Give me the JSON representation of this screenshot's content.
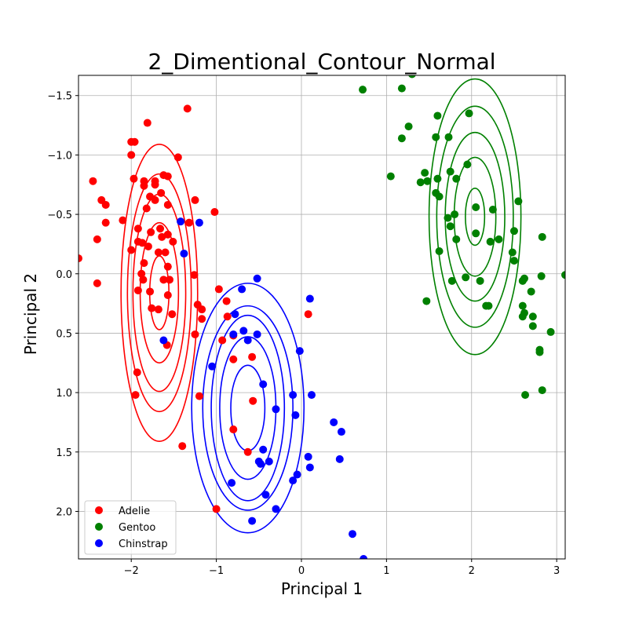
{
  "chart_data": {
    "type": "scatter",
    "title": "2_Dimentional_Contour_Normal",
    "xlabel": "Principal 1",
    "ylabel": "Principal 2",
    "xlim": [
      -2.62,
      3.1
    ],
    "ylim": [
      2.4,
      -1.67
    ],
    "y_inverted": true,
    "grid": true,
    "legend_position": "lower left",
    "x_ticks": [
      -2,
      -1,
      0,
      1,
      2,
      3
    ],
    "x_tick_labels": [
      "−2",
      "−1",
      "0",
      "1",
      "2",
      "3"
    ],
    "y_ticks": [
      -1.5,
      -1.0,
      -0.5,
      0.0,
      0.5,
      1.0,
      1.5,
      2.0
    ],
    "y_tick_labels": [
      "−1.5",
      "−1.0",
      "−0.5",
      "0.0",
      "0.5",
      "1.0",
      "1.5",
      "2.0"
    ],
    "series": [
      {
        "name": "Adelie",
        "color": "#ff0000",
        "points": [
          [
            -1.81,
            -1.27
          ],
          [
            -2.0,
            -1.11
          ],
          [
            -1.96,
            -1.11
          ],
          [
            -2.0,
            -1.0
          ],
          [
            -1.45,
            -0.98
          ],
          [
            -2.45,
            -0.78
          ],
          [
            -1.97,
            -0.8
          ],
          [
            -1.85,
            -0.78
          ],
          [
            -1.85,
            -0.74
          ],
          [
            -1.62,
            -0.83
          ],
          [
            -1.57,
            -0.82
          ],
          [
            -1.72,
            -0.78
          ],
          [
            -1.72,
            -0.75
          ],
          [
            -1.65,
            -0.68
          ],
          [
            -1.78,
            -0.65
          ],
          [
            -1.72,
            -0.62
          ],
          [
            -1.82,
            -0.55
          ],
          [
            -1.57,
            -0.58
          ],
          [
            -1.25,
            -0.62
          ],
          [
            -1.02,
            -0.52
          ],
          [
            -2.35,
            -0.62
          ],
          [
            -2.3,
            -0.58
          ],
          [
            -2.1,
            -0.45
          ],
          [
            -2.3,
            -0.43
          ],
          [
            -1.92,
            -0.38
          ],
          [
            -1.77,
            -0.35
          ],
          [
            -1.66,
            -0.38
          ],
          [
            -1.57,
            -0.33
          ],
          [
            -1.64,
            -0.31
          ],
          [
            -1.51,
            -0.27
          ],
          [
            -2.4,
            -0.29
          ],
          [
            -1.92,
            -0.27
          ],
          [
            -1.87,
            -0.26
          ],
          [
            -1.8,
            -0.23
          ],
          [
            -1.32,
            -0.43
          ],
          [
            -1.85,
            -0.09
          ],
          [
            -1.68,
            -0.18
          ],
          [
            -2.0,
            -0.2
          ],
          [
            -1.57,
            -0.06
          ],
          [
            -2.62,
            -0.13
          ],
          [
            -1.88,
            0.0
          ],
          [
            -1.86,
            0.05
          ],
          [
            -1.62,
            0.05
          ],
          [
            -1.55,
            0.05
          ],
          [
            -1.26,
            0.01
          ],
          [
            -2.4,
            0.08
          ],
          [
            -1.92,
            0.14
          ],
          [
            -1.78,
            0.15
          ],
          [
            -1.57,
            0.18
          ],
          [
            -1.22,
            0.26
          ],
          [
            -1.76,
            0.29
          ],
          [
            -1.68,
            0.3
          ],
          [
            -1.52,
            0.34
          ],
          [
            -1.17,
            0.3
          ],
          [
            -1.17,
            0.38
          ],
          [
            -0.97,
            0.13
          ],
          [
            -0.88,
            0.23
          ],
          [
            -0.87,
            0.36
          ],
          [
            -1.25,
            0.51
          ],
          [
            -1.58,
            0.6
          ],
          [
            -0.93,
            0.56
          ],
          [
            -0.8,
            0.52
          ],
          [
            -0.8,
            0.72
          ],
          [
            -0.58,
            0.7
          ],
          [
            -1.2,
            1.03
          ],
          [
            -1.93,
            0.83
          ],
          [
            -1.95,
            1.02
          ],
          [
            -0.57,
            1.07
          ],
          [
            -0.8,
            1.31
          ],
          [
            -0.63,
            1.5
          ],
          [
            -1.4,
            1.45
          ],
          [
            -1.0,
            1.98
          ],
          [
            0.08,
            0.34
          ],
          [
            -1.34,
            -1.39
          ],
          [
            -1.6,
            -0.18
          ]
        ]
      },
      {
        "name": "Gentoo",
        "color": "#008000",
        "points": [
          [
            0.72,
            -1.55
          ],
          [
            1.3,
            -1.68
          ],
          [
            1.18,
            -1.56
          ],
          [
            1.97,
            -1.35
          ],
          [
            1.6,
            -1.33
          ],
          [
            1.26,
            -1.24
          ],
          [
            1.18,
            -1.14
          ],
          [
            1.58,
            -1.15
          ],
          [
            1.73,
            -1.15
          ],
          [
            1.05,
            -0.82
          ],
          [
            1.45,
            -0.85
          ],
          [
            1.48,
            -0.78
          ],
          [
            1.4,
            -0.77
          ],
          [
            1.6,
            -0.8
          ],
          [
            1.75,
            -0.86
          ],
          [
            1.95,
            -0.92
          ],
          [
            1.82,
            -0.8
          ],
          [
            1.58,
            -0.68
          ],
          [
            1.62,
            -0.65
          ],
          [
            2.05,
            -0.56
          ],
          [
            2.25,
            -0.54
          ],
          [
            2.55,
            -0.61
          ],
          [
            1.72,
            -0.47
          ],
          [
            1.8,
            -0.5
          ],
          [
            1.75,
            -0.4
          ],
          [
            2.05,
            -0.34
          ],
          [
            1.82,
            -0.29
          ],
          [
            2.22,
            -0.27
          ],
          [
            2.32,
            -0.29
          ],
          [
            2.5,
            -0.36
          ],
          [
            2.48,
            -0.18
          ],
          [
            2.5,
            -0.11
          ],
          [
            2.83,
            -0.31
          ],
          [
            1.62,
            -0.19
          ],
          [
            2.1,
            0.06
          ],
          [
            1.93,
            0.03
          ],
          [
            1.77,
            0.06
          ],
          [
            2.6,
            0.06
          ],
          [
            2.62,
            0.04
          ],
          [
            2.82,
            0.02
          ],
          [
            3.1,
            0.01
          ],
          [
            2.7,
            0.15
          ],
          [
            2.6,
            0.27
          ],
          [
            2.62,
            0.33
          ],
          [
            2.6,
            0.36
          ],
          [
            2.72,
            0.36
          ],
          [
            2.72,
            0.44
          ],
          [
            2.93,
            0.49
          ],
          [
            2.17,
            0.27
          ],
          [
            2.2,
            0.27
          ],
          [
            1.47,
            0.23
          ],
          [
            2.8,
            0.64
          ],
          [
            2.8,
            0.66
          ],
          [
            2.83,
            0.98
          ],
          [
            2.63,
            1.02
          ]
        ]
      },
      {
        "name": "Chinstrap",
        "color": "#0000ff",
        "points": [
          [
            -1.42,
            -0.44
          ],
          [
            -1.2,
            -0.43
          ],
          [
            -1.38,
            -0.17
          ],
          [
            -0.52,
            0.04
          ],
          [
            -0.7,
            0.13
          ],
          [
            0.1,
            0.21
          ],
          [
            -0.78,
            0.34
          ],
          [
            -0.68,
            0.48
          ],
          [
            -0.63,
            0.56
          ],
          [
            -0.52,
            0.51
          ],
          [
            -0.8,
            0.51
          ],
          [
            -1.62,
            0.56
          ],
          [
            -1.05,
            0.78
          ],
          [
            -0.02,
            0.65
          ],
          [
            -0.45,
            0.93
          ],
          [
            -0.1,
            1.02
          ],
          [
            0.12,
            1.02
          ],
          [
            -0.3,
            1.14
          ],
          [
            -0.07,
            1.19
          ],
          [
            0.38,
            1.25
          ],
          [
            0.47,
            1.33
          ],
          [
            -0.45,
            1.48
          ],
          [
            -0.5,
            1.58
          ],
          [
            -0.48,
            1.6
          ],
          [
            -0.38,
            1.58
          ],
          [
            0.08,
            1.54
          ],
          [
            0.1,
            1.63
          ],
          [
            0.45,
            1.56
          ],
          [
            -0.05,
            1.69
          ],
          [
            -0.1,
            1.74
          ],
          [
            -0.82,
            1.76
          ],
          [
            -0.42,
            1.86
          ],
          [
            -0.3,
            1.98
          ],
          [
            -0.58,
            2.08
          ],
          [
            0.6,
            2.19
          ],
          [
            0.73,
            2.4
          ]
        ]
      }
    ],
    "contours": [
      {
        "name": "Adelie",
        "color": "#ff0000",
        "center": [
          -1.67,
          0.16
        ],
        "semi_axis_x": [
          0.113,
          0.225,
          0.31,
          0.375,
          0.45
        ],
        "semi_axis_y": [
          0.31,
          0.59,
          0.83,
          1.0,
          1.25
        ]
      },
      {
        "name": "Gentoo",
        "color": "#008000",
        "center": [
          2.04,
          -0.48
        ],
        "semi_axis_x": [
          0.113,
          0.245,
          0.35,
          0.45,
          0.54
        ],
        "semi_axis_y": [
          0.24,
          0.5,
          0.71,
          0.93,
          1.16
        ]
      },
      {
        "name": "Chinstrap",
        "color": "#0000ff",
        "center": [
          -0.63,
          1.13
        ],
        "semi_axis_x": [
          0.2,
          0.33,
          0.43,
          0.53,
          0.66
        ],
        "semi_axis_y": [
          0.36,
          0.6,
          0.78,
          0.86,
          1.05
        ]
      }
    ]
  }
}
